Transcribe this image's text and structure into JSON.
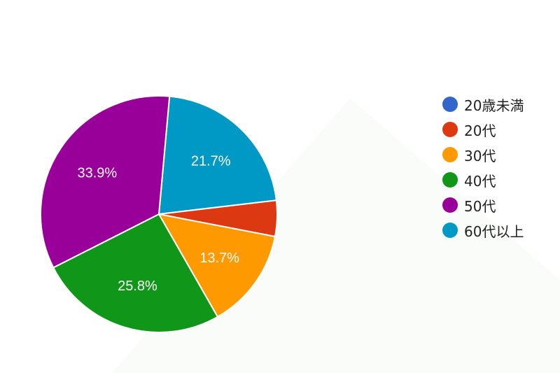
{
  "chart_data": {
    "type": "pie",
    "title": "",
    "start_category": "60代以上",
    "direction": "clockwise",
    "categories": [
      "20歳未満",
      "20代",
      "30代",
      "40代",
      "50代",
      "60代以上"
    ],
    "values": [
      0.0,
      4.9,
      13.7,
      25.8,
      33.9,
      21.7
    ],
    "colors": [
      "#3366cc",
      "#dc3912",
      "#ff9900",
      "#109618",
      "#990099",
      "#0099c6"
    ],
    "data_labels": [
      "",
      "",
      "13.7%",
      "25.8%",
      "33.9%",
      "21.7%"
    ],
    "legend_position": "right"
  }
}
